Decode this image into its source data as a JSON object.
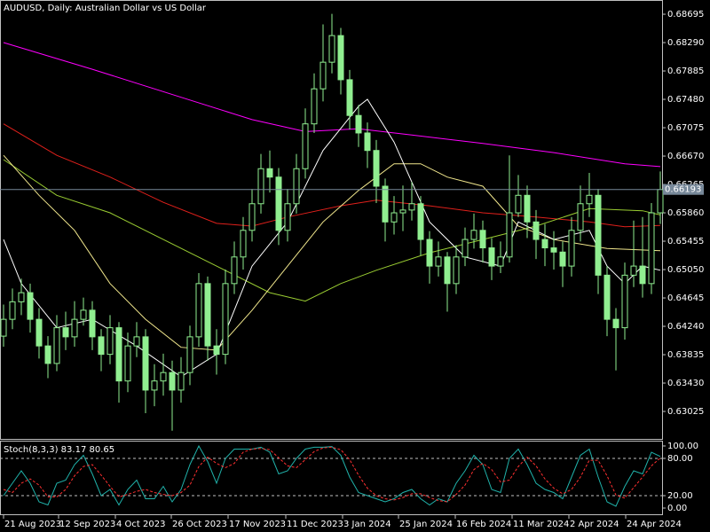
{
  "chart_data": [
    {
      "type": "candlestick",
      "title": "AUDUSD, Daily:  Australian Dollar vs US Dollar",
      "up_color": "#000000",
      "down_color": "#90ee90",
      "line_color": "#90ee90",
      "ylim": [
        0.62633,
        0.68898
      ],
      "yticks": [
        0.68695,
        {
          "value": 0.6829,
          "label": "0.68290"
        },
        0.67885,
        {
          "value": 0.6748,
          "label": "0.67480"
        },
        0.67075,
        {
          "value": 0.6667,
          "label": "0.66670"
        },
        0.66265,
        {
          "value": 0.6586,
          "label": "0.65860"
        },
        0.65455,
        {
          "value": 0.6505,
          "label": "0.65050"
        },
        0.64645,
        {
          "value": 0.6424,
          "label": "0.64240"
        },
        0.63835,
        {
          "value": 0.6343,
          "label": "0.63430"
        },
        0.63025
      ],
      "xlim": [
        -0.4,
        74.2
      ],
      "xticks": [
        {
          "value": 0,
          "label": "21 Aug 2023"
        },
        {
          "value": 6.2,
          "label": "12 Sep 2023"
        },
        {
          "value": 12.6,
          "label": "4 Oct 2023"
        },
        {
          "value": 18.9,
          "label": "26 Oct 2023"
        },
        {
          "value": 25.3,
          "label": "17 Nov 2023"
        },
        {
          "value": 31.8,
          "label": "11 Dec 2023"
        },
        {
          "value": 38.2,
          "label": "3 Jan 2024"
        },
        {
          "value": 44.5,
          "label": "25 Jan 2024"
        },
        {
          "value": 50.9,
          "label": "16 Feb 2024"
        },
        {
          "value": 57.3,
          "label": "11 Mar 2024"
        },
        {
          "value": 63.7,
          "label": "2 Apr 2024"
        },
        {
          "value": 70.1,
          "label": "24 Apr 2024"
        }
      ],
      "open": [
        0.641,
        0.6434,
        0.6459,
        0.6472,
        0.6434,
        0.6396,
        0.6371,
        0.6422,
        0.6409,
        0.6434,
        0.6447,
        0.6409,
        0.6384,
        0.6422,
        0.6346,
        0.6396,
        0.6409,
        0.6333,
        0.6346,
        0.6358,
        0.6333,
        0.6358,
        0.6409,
        0.6485,
        0.6396,
        0.6384,
        0.6485,
        0.6523,
        0.6561,
        0.6599,
        0.6649,
        0.6637,
        0.6561,
        0.6599,
        0.6649,
        0.6713,
        0.6763,
        0.6801,
        0.6839,
        0.6776,
        0.6725,
        0.67,
        0.6675,
        0.6624,
        0.6573,
        0.6586,
        0.659,
        0.6599,
        0.6548,
        0.651,
        0.6523,
        0.6485,
        0.6523,
        0.6548,
        0.6561,
        0.6536,
        0.651,
        0.6523,
        0.6586,
        0.6611,
        0.6573,
        0.6548,
        0.6536,
        0.653,
        0.651,
        0.6561,
        0.6599,
        0.6611,
        0.6497,
        0.6434,
        0.6422,
        0.6497,
        0.651,
        0.6485,
        0.6586
      ],
      "high": [
        0.6455,
        0.6478,
        0.6492,
        0.6485,
        0.645,
        0.641,
        0.644,
        0.6445,
        0.646,
        0.6465,
        0.646,
        0.642,
        0.644,
        0.643,
        0.6415,
        0.643,
        0.642,
        0.637,
        0.6385,
        0.6375,
        0.638,
        0.6425,
        0.65,
        0.6495,
        0.642,
        0.6505,
        0.6545,
        0.658,
        0.662,
        0.667,
        0.6675,
        0.665,
        0.662,
        0.667,
        0.6735,
        0.6785,
        0.6855,
        0.687,
        0.685,
        0.679,
        0.674,
        0.6715,
        0.669,
        0.6635,
        0.661,
        0.6625,
        0.663,
        0.661,
        0.656,
        0.6545,
        0.653,
        0.654,
        0.6565,
        0.6585,
        0.6575,
        0.655,
        0.6545,
        0.6668,
        0.664,
        0.6625,
        0.659,
        0.657,
        0.656,
        0.6545,
        0.658,
        0.6625,
        0.6643,
        0.662,
        0.651,
        0.645,
        0.6515,
        0.6575,
        0.658,
        0.66,
        0.6645
      ],
      "low": [
        0.6395,
        0.642,
        0.644,
        0.6415,
        0.6378,
        0.635,
        0.636,
        0.639,
        0.6395,
        0.6425,
        0.639,
        0.636,
        0.637,
        0.6315,
        0.633,
        0.638,
        0.63,
        0.631,
        0.6325,
        0.6275,
        0.6315,
        0.634,
        0.6395,
        0.6375,
        0.6355,
        0.637,
        0.647,
        0.6505,
        0.6545,
        0.6585,
        0.6615,
        0.654,
        0.6545,
        0.6585,
        0.6635,
        0.67,
        0.6745,
        0.6785,
        0.6755,
        0.6705,
        0.668,
        0.665,
        0.66,
        0.6545,
        0.6555,
        0.656,
        0.6575,
        0.6525,
        0.6485,
        0.6495,
        0.6445,
        0.647,
        0.651,
        0.6535,
        0.6515,
        0.649,
        0.65,
        0.6515,
        0.658,
        0.655,
        0.652,
        0.651,
        0.6505,
        0.648,
        0.6495,
        0.6545,
        0.658,
        0.647,
        0.641,
        0.6361,
        0.6405,
        0.648,
        0.6465,
        0.647,
        0.657
      ],
      "close": [
        0.6434,
        0.6459,
        0.6472,
        0.6434,
        0.6396,
        0.6371,
        0.6422,
        0.6409,
        0.6434,
        0.6447,
        0.6409,
        0.6384,
        0.6422,
        0.6346,
        0.6396,
        0.6409,
        0.6333,
        0.6346,
        0.6358,
        0.6333,
        0.6358,
        0.6409,
        0.6485,
        0.6396,
        0.6384,
        0.6485,
        0.6523,
        0.6561,
        0.6599,
        0.6649,
        0.6637,
        0.6561,
        0.6599,
        0.6649,
        0.6713,
        0.6763,
        0.6801,
        0.6839,
        0.6776,
        0.6725,
        0.67,
        0.6675,
        0.6624,
        0.6573,
        0.6586,
        0.659,
        0.6599,
        0.6548,
        0.651,
        0.6523,
        0.6485,
        0.6523,
        0.6548,
        0.6561,
        0.6536,
        0.651,
        0.6523,
        0.6586,
        0.6611,
        0.6573,
        0.6548,
        0.6536,
        0.653,
        0.651,
        0.6561,
        0.6599,
        0.6611,
        0.6497,
        0.6434,
        0.6422,
        0.6497,
        0.651,
        0.6485,
        0.6586,
        0.66193
      ],
      "price_line_color": "#778899",
      "series": [
        {
          "color": "#ff00ff",
          "x": [
            0,
            10,
            20,
            28,
            34,
            40,
            46,
            54,
            62,
            70,
            74
          ],
          "values": [
            0.6829,
            0.6791,
            0.6751,
            0.6719,
            0.6702,
            0.6706,
            0.6697,
            0.6685,
            0.6672,
            0.6656,
            0.6652
          ]
        },
        {
          "color": "#e0201b",
          "x": [
            0,
            6,
            12,
            18,
            24,
            28,
            32,
            38,
            42,
            48,
            54,
            60,
            66,
            70,
            74
          ],
          "values": [
            0.6713,
            0.6668,
            0.6637,
            0.6601,
            0.6571,
            0.6567,
            0.658,
            0.6596,
            0.6604,
            0.6596,
            0.6586,
            0.658,
            0.6573,
            0.6566,
            0.6568
          ]
        },
        {
          "color": "#9acd32",
          "x": [
            0,
            6,
            12,
            18,
            24,
            30,
            34,
            38,
            42,
            48,
            54,
            60,
            66,
            72,
            74
          ],
          "values": [
            0.6662,
            0.6611,
            0.6586,
            0.6548,
            0.651,
            0.6472,
            0.646,
            0.6485,
            0.6504,
            0.6529,
            0.6548,
            0.6567,
            0.6592,
            0.6589,
            0.6583
          ]
        },
        {
          "color": "#f0e68c",
          "x": [
            0,
            4,
            8,
            12,
            16,
            20,
            24,
            28,
            32,
            36,
            40,
            44,
            47,
            50,
            54,
            58,
            62,
            68,
            74
          ],
          "values": [
            0.6668,
            0.6611,
            0.6561,
            0.6485,
            0.6434,
            0.6394,
            0.639,
            0.6447,
            0.651,
            0.6573,
            0.6618,
            0.6656,
            0.6656,
            0.6637,
            0.6624,
            0.6567,
            0.6548,
            0.6535,
            0.6532
          ]
        },
        {
          "color": "#ffffff",
          "x": [
            0,
            2,
            6,
            10,
            15,
            20,
            24,
            28,
            32,
            36,
            40,
            41,
            44,
            48,
            52,
            56,
            58,
            62,
            66,
            68,
            70,
            72,
            74
          ],
          "values": [
            0.6548,
            0.6485,
            0.6422,
            0.6434,
            0.6396,
            0.6352,
            0.6384,
            0.651,
            0.6573,
            0.6675,
            0.6738,
            0.6748,
            0.6687,
            0.6573,
            0.6523,
            0.651,
            0.6573,
            0.6548,
            0.6561,
            0.651,
            0.6485,
            0.651,
            0.6504
          ]
        }
      ]
    },
    {
      "type": "line",
      "title": "Stoch(8,3,3)",
      "ylim": [
        -10,
        107.1
      ],
      "xlim": [
        -0.4,
        74.2
      ],
      "yticks": [
        {
          "value": 100,
          "label": "100.00"
        },
        {
          "value": 80,
          "label": "80.00"
        },
        {
          "value": 20,
          "label": "20.00"
        },
        {
          "value": 0,
          "label": "0.00"
        }
      ],
      "levels": [
        80,
        20
      ],
      "series": [
        {
          "color": "#20b2aa",
          "dashed": false,
          "values": [
            20,
            40,
            60,
            40,
            10,
            5,
            40,
            45,
            70,
            85,
            55,
            20,
            30,
            5,
            30,
            45,
            15,
            15,
            35,
            10,
            30,
            70,
            100,
            75,
            40,
            80,
            95,
            95,
            95,
            98,
            90,
            55,
            60,
            80,
            95,
            98,
            98,
            99,
            85,
            50,
            25,
            20,
            15,
            10,
            15,
            25,
            30,
            15,
            5,
            15,
            10,
            40,
            60,
            85,
            70,
            30,
            25,
            80,
            95,
            70,
            40,
            30,
            25,
            15,
            50,
            85,
            95,
            50,
            10,
            3,
            35,
            60,
            55,
            90,
            83.17
          ]
        },
        {
          "color": "#ff3030",
          "dashed": true,
          "values": [
            30,
            25,
            40,
            47,
            37,
            18,
            18,
            30,
            52,
            67,
            70,
            53,
            35,
            18,
            22,
            27,
            30,
            25,
            22,
            20,
            25,
            37,
            67,
            82,
            72,
            65,
            72,
            90,
            95,
            96,
            94,
            81,
            68,
            65,
            78,
            91,
            97,
            98,
            94,
            78,
            53,
            32,
            20,
            15,
            13,
            17,
            23,
            23,
            17,
            12,
            10,
            22,
            37,
            62,
            72,
            62,
            42,
            45,
            67,
            82,
            68,
            47,
            32,
            23,
            30,
            50,
            77,
            77,
            52,
            21,
            16,
            33,
            50,
            68,
            80.65
          ]
        }
      ]
    }
  ]
}
